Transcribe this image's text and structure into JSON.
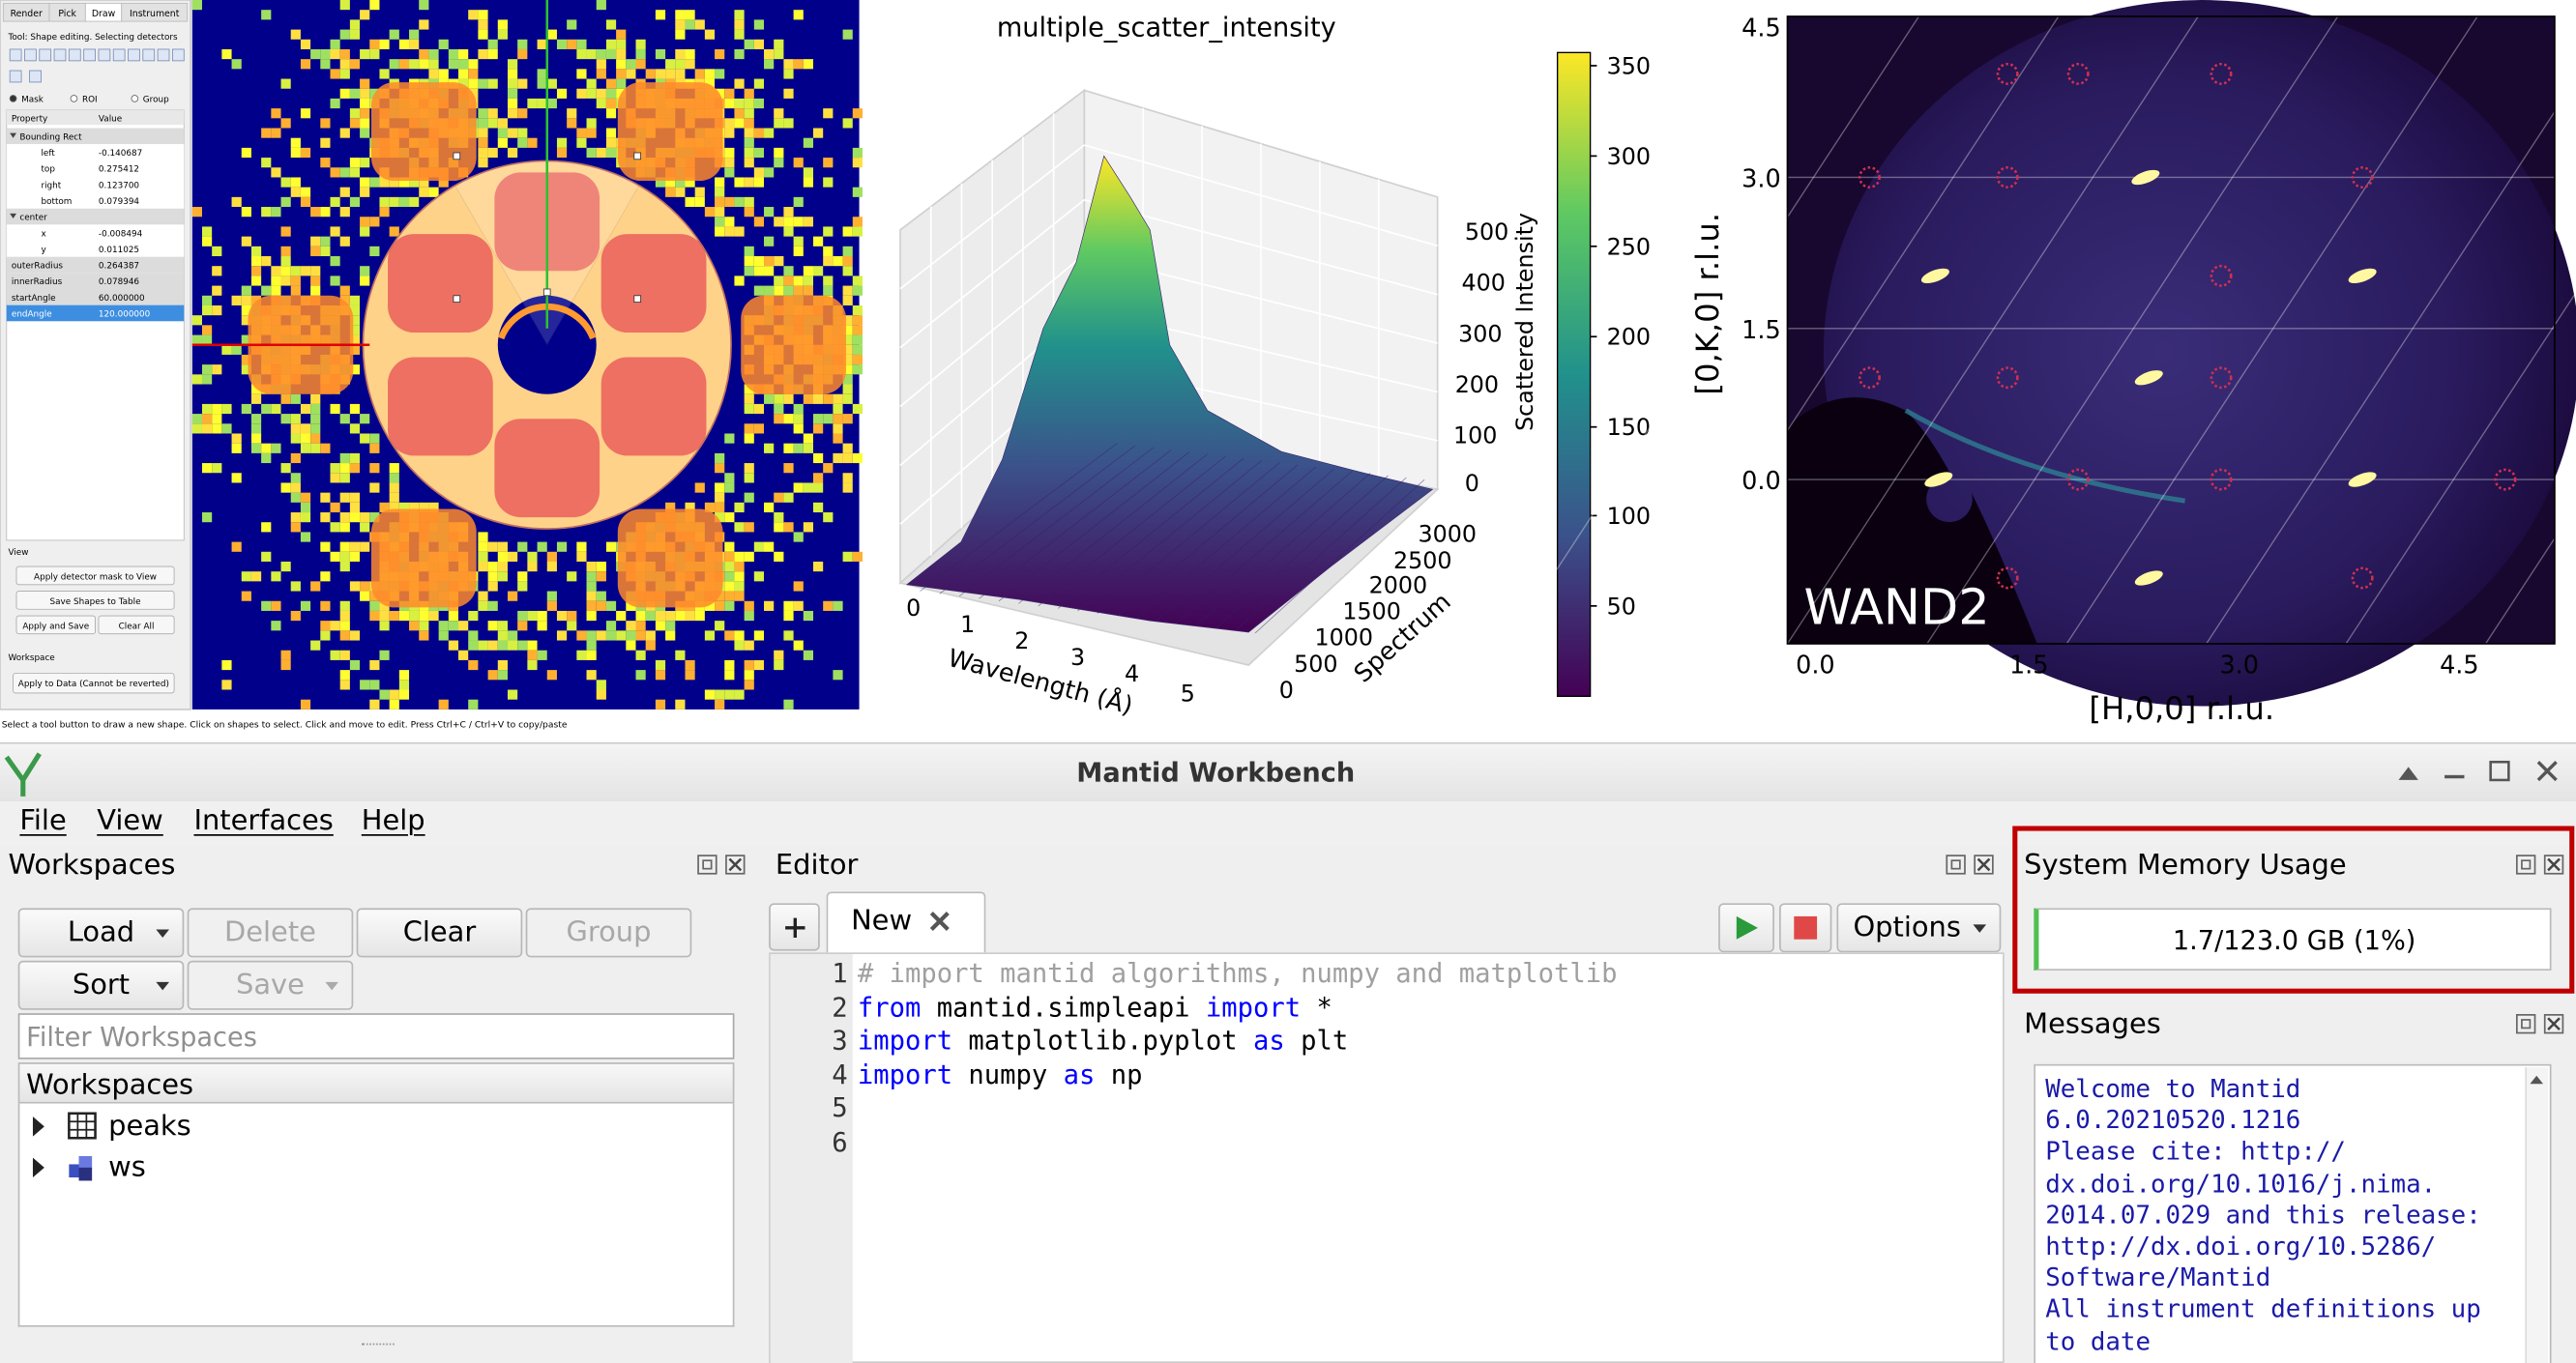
{
  "instrument_view": {
    "tabs": [
      "Render",
      "Pick",
      "Draw",
      "Instrument"
    ],
    "tool_text": "Tool: Shape editing. Selecting detectors",
    "radios": [
      "Mask",
      "ROI",
      "Group"
    ],
    "table_header": [
      "Property",
      "Value"
    ],
    "rows": [
      {
        "label": "Bounding Rect"
      },
      {
        "label": "left",
        "value": "-0.140687"
      },
      {
        "label": "top",
        "value": "0.275412"
      },
      {
        "label": "right",
        "value": "0.123700"
      },
      {
        "label": "bottom",
        "value": "0.079394"
      },
      {
        "label": "center"
      },
      {
        "label": "x",
        "value": "-0.008494"
      },
      {
        "label": "y",
        "value": "0.011025"
      },
      {
        "label": "outerRadius",
        "value": "0.264387"
      },
      {
        "label": "innerRadius",
        "value": "0.078946"
      },
      {
        "label": "startAngle",
        "value": "60.000000"
      },
      {
        "label": "endAngle",
        "value": "120.000000"
      }
    ],
    "view_label": "View",
    "buttons": [
      "Apply detector mask to View",
      "Save Shapes to Table",
      "Apply and Save",
      "Clear All"
    ],
    "workspace_label": "Workspace",
    "apply_button": "Apply to Data (Cannot be reverted)",
    "status": "Select a tool button to draw a new shape. Click on shapes to select. Click and move to edit. Press Ctrl+C / Ctrl+V to copy/paste"
  },
  "surface_plot": {
    "title": "multiple_scatter_intensity",
    "xlabel": "Wavelength (Å)",
    "xticks": [
      0,
      1,
      2,
      3,
      4,
      5
    ],
    "ylabel": "Spectrum",
    "yticks": [
      0,
      500,
      1000,
      1500,
      2000,
      2500,
      3000
    ],
    "zlabel": "Scattered Intensity",
    "zticks": [
      0,
      100,
      200,
      300,
      400,
      500
    ],
    "colorbar_ticks": [
      50,
      100,
      150,
      200,
      250,
      300,
      350
    ]
  },
  "slice_plot": {
    "annotation": "WAND2",
    "xlabel": "[H,0,0] r.l.u.",
    "ylabel": "[0,K,0] r.l.u.",
    "xticks": [
      "0.0",
      "1.5",
      "3.0",
      "4.5"
    ],
    "yticks": [
      "4.5",
      "3.0",
      "1.5",
      "0.0"
    ]
  },
  "window": {
    "title": "Mantid Workbench",
    "menu": [
      "File",
      "View",
      "Interfaces",
      "Help"
    ],
    "workspaces": {
      "title": "Workspaces",
      "buttons": [
        "Load",
        "Delete",
        "Clear",
        "Group",
        "Sort",
        "Save"
      ],
      "filter_placeholder": "Filter Workspaces",
      "tree_header": "Workspaces",
      "items": [
        "peaks",
        "ws"
      ]
    },
    "editor": {
      "title": "Editor",
      "tab": "New",
      "options": "Options",
      "line_numbers": [
        1,
        2,
        3,
        4,
        5,
        6
      ],
      "lines": [
        [
          {
            "text": "# import mantid algorithms, numpy and matplotlib",
            "color": "#a0a0a0"
          }
        ],
        [
          {
            "text": "from",
            "color": "#0000ff"
          },
          {
            "text": " mantid.simpleapi ",
            "color": "#000000"
          },
          {
            "text": "import",
            "color": "#0000ff"
          },
          {
            "text": " *",
            "color": "#000000"
          }
        ],
        [
          {
            "text": "import",
            "color": "#0000ff"
          },
          {
            "text": " matplotlib.pyplot ",
            "color": "#000000"
          },
          {
            "text": "as",
            "color": "#0000ff"
          },
          {
            "text": " plt",
            "color": "#000000"
          }
        ],
        [
          {
            "text": "import",
            "color": "#0000ff"
          },
          {
            "text": " numpy ",
            "color": "#000000"
          },
          {
            "text": "as",
            "color": "#0000ff"
          },
          {
            "text": " np",
            "color": "#000000"
          }
        ]
      ]
    },
    "memory": {
      "title": "System Memory Usage",
      "value": "1.7/123.0 GB (1%)"
    },
    "messages": {
      "title": "Messages",
      "lines": [
        "Welcome to Mantid",
        "6.0.20210520.1216",
        "Please cite: http://",
        "dx.doi.org/10.1016/j.nima.",
        "2014.07.029 and this release:",
        "http://dx.doi.org/10.5286/",
        "Software/Mantid",
        "All instrument definitions up",
        "to date"
      ]
    }
  }
}
